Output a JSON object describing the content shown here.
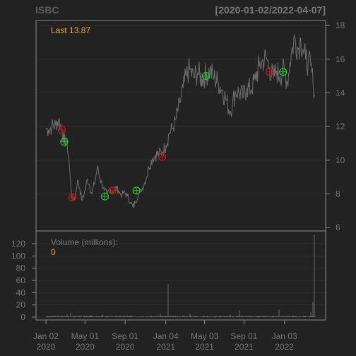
{
  "header": {
    "symbol": "ISBC",
    "date_range": "[2020-01-02/2022-04-07]"
  },
  "colors": {
    "background": "#222222",
    "frame": "#8c8c8c",
    "grid": "#2e2e2e",
    "price_line": "#6a6a6a",
    "text_muted": "#777777",
    "accent_orange": "#f5a623",
    "buy_marker": "#22c02a",
    "sell_marker": "#c0161a"
  },
  "chart_data": [
    {
      "type": "line",
      "title": "ISBC",
      "last_label": "Last 13.87",
      "ylim": [
        5.8,
        18.3
      ],
      "yticks": [
        6,
        8,
        10,
        12,
        14,
        16,
        18
      ],
      "x_range": [
        "2020-01-02",
        "2022-04-07"
      ],
      "grid": true,
      "series": [
        {
          "points": [
            [
              "2020-01-02",
              11.9
            ],
            [
              "2020-01-10",
              11.8
            ],
            [
              "2020-01-20",
              12.0
            ],
            [
              "2020-02-01",
              12.1
            ],
            [
              "2020-02-10",
              12.4
            ],
            [
              "2020-02-20",
              11.9
            ],
            [
              "2020-02-27",
              11.1
            ],
            [
              "2020-03-05",
              11.2
            ],
            [
              "2020-03-12",
              10.2
            ],
            [
              "2020-03-18",
              8.6
            ],
            [
              "2020-03-23",
              7.6
            ],
            [
              "2020-03-31",
              7.8
            ],
            [
              "2020-04-08",
              8.8
            ],
            [
              "2020-04-15",
              8.3
            ],
            [
              "2020-04-22",
              7.6
            ],
            [
              "2020-05-01",
              8.2
            ],
            [
              "2020-05-08",
              8.9
            ],
            [
              "2020-05-15",
              8.5
            ],
            [
              "2020-05-22",
              8.0
            ],
            [
              "2020-06-01",
              8.8
            ],
            [
              "2020-06-08",
              9.6
            ],
            [
              "2020-06-15",
              9.0
            ],
            [
              "2020-06-22",
              8.6
            ],
            [
              "2020-06-30",
              8.2
            ],
            [
              "2020-07-08",
              8.0
            ],
            [
              "2020-07-16",
              8.3
            ],
            [
              "2020-07-24",
              8.1
            ],
            [
              "2020-08-03",
              8.4
            ],
            [
              "2020-08-12",
              8.2
            ],
            [
              "2020-08-20",
              7.9
            ],
            [
              "2020-08-28",
              8.1
            ],
            [
              "2020-09-08",
              7.9
            ],
            [
              "2020-09-18",
              7.5
            ],
            [
              "2020-09-25",
              7.2
            ],
            [
              "2020-10-02",
              7.5
            ],
            [
              "2020-10-12",
              8.0
            ],
            [
              "2020-10-20",
              8.2
            ],
            [
              "2020-10-30",
              8.6
            ],
            [
              "2020-11-06",
              9.0
            ],
            [
              "2020-11-13",
              9.6
            ],
            [
              "2020-11-24",
              10.1
            ],
            [
              "2020-12-03",
              10.3
            ],
            [
              "2020-12-14",
              10.4
            ],
            [
              "2020-12-24",
              10.5
            ],
            [
              "2021-01-05",
              10.9
            ],
            [
              "2021-01-14",
              11.6
            ],
            [
              "2021-01-25",
              11.9
            ],
            [
              "2021-02-05",
              12.5
            ],
            [
              "2021-02-16",
              13.4
            ],
            [
              "2021-02-26",
              14.3
            ],
            [
              "2021-03-08",
              15.0
            ],
            [
              "2021-03-18",
              15.4
            ],
            [
              "2021-03-30",
              14.9
            ],
            [
              "2021-04-12",
              15.2
            ],
            [
              "2021-04-26",
              14.8
            ],
            [
              "2021-05-07",
              15.1
            ],
            [
              "2021-05-20",
              15.3
            ],
            [
              "2021-06-01",
              14.9
            ],
            [
              "2021-06-14",
              14.6
            ],
            [
              "2021-06-25",
              14.2
            ],
            [
              "2021-07-08",
              13.6
            ],
            [
              "2021-07-20",
              12.9
            ],
            [
              "2021-07-28",
              13.4
            ],
            [
              "2021-08-06",
              14.1
            ],
            [
              "2021-08-18",
              14.0
            ],
            [
              "2021-08-30",
              13.8
            ],
            [
              "2021-09-10",
              14.3
            ],
            [
              "2021-09-23",
              14.2
            ],
            [
              "2021-10-05",
              14.8
            ],
            [
              "2021-10-18",
              15.6
            ],
            [
              "2021-10-29",
              15.9
            ],
            [
              "2021-11-08",
              16.1
            ],
            [
              "2021-11-18",
              15.5
            ],
            [
              "2021-11-30",
              14.9
            ],
            [
              "2021-12-10",
              15.3
            ],
            [
              "2021-12-20",
              15.0
            ],
            [
              "2022-01-03",
              15.4
            ],
            [
              "2022-01-12",
              14.6
            ],
            [
              "2022-01-20",
              15.8
            ],
            [
              "2022-01-28",
              16.7
            ],
            [
              "2022-02-04",
              17.3
            ],
            [
              "2022-02-14",
              16.6
            ],
            [
              "2022-02-22",
              17.2
            ],
            [
              "2022-03-01",
              16.6
            ],
            [
              "2022-03-09",
              16.0
            ],
            [
              "2022-03-17",
              15.8
            ],
            [
              "2022-03-25",
              15.6
            ],
            [
              "2022-04-01",
              14.6
            ],
            [
              "2022-04-07",
              13.87
            ]
          ]
        }
      ],
      "markers": [
        {
          "date": "2020-02-20",
          "value": 11.8,
          "type": "sell"
        },
        {
          "date": "2020-02-27",
          "value": 11.1,
          "type": "buy"
        },
        {
          "date": "2020-03-23",
          "value": 7.8,
          "type": "sell"
        },
        {
          "date": "2020-07-01",
          "value": 7.85,
          "type": "buy"
        },
        {
          "date": "2020-07-24",
          "value": 8.2,
          "type": "sell"
        },
        {
          "date": "2020-10-06",
          "value": 8.2,
          "type": "buy"
        },
        {
          "date": "2020-12-24",
          "value": 10.2,
          "type": "sell"
        },
        {
          "date": "2021-05-07",
          "value": 15.0,
          "type": "buy"
        },
        {
          "date": "2021-11-18",
          "value": 15.25,
          "type": "sell"
        },
        {
          "date": "2021-12-30",
          "value": 15.25,
          "type": "buy"
        }
      ]
    },
    {
      "type": "bar",
      "title": "Volume (millions):",
      "last_label": "0",
      "ylim": [
        0,
        128
      ],
      "yticks": [
        0,
        20,
        40,
        60,
        80,
        100,
        120
      ],
      "grid": true,
      "x_ticks": [
        {
          "date": "2020-01-02",
          "line1": "Jan 02",
          "line2": "2020"
        },
        {
          "date": "2020-05-01",
          "line1": "May 01",
          "line2": "2020"
        },
        {
          "date": "2020-09-01",
          "line1": "Sep 01",
          "line2": "2020"
        },
        {
          "date": "2021-01-04",
          "line1": "Jan 04",
          "line2": "2021"
        },
        {
          "date": "2021-05-03",
          "line1": "May 03",
          "line2": "2021"
        },
        {
          "date": "2021-09-01",
          "line1": "Sep 01",
          "line2": "2021"
        },
        {
          "date": "2022-01-03",
          "line1": "Jan 03",
          "line2": "2022"
        }
      ],
      "baseline": 1.5,
      "spikes": [
        {
          "date": "2020-03-06",
          "value": 5
        },
        {
          "date": "2020-03-17",
          "value": 7
        },
        {
          "date": "2020-05-20",
          "value": 4
        },
        {
          "date": "2020-06-24",
          "value": 4
        },
        {
          "date": "2020-12-18",
          "value": 6
        },
        {
          "date": "2021-01-12",
          "value": 54
        },
        {
          "date": "2021-03-19",
          "value": 6
        },
        {
          "date": "2021-07-20",
          "value": 4
        },
        {
          "date": "2021-08-18",
          "value": 11
        },
        {
          "date": "2021-12-17",
          "value": 12
        },
        {
          "date": "2022-03-25",
          "value": 8
        },
        {
          "date": "2022-04-01",
          "value": 25
        },
        {
          "date": "2022-04-05",
          "value": 135
        }
      ]
    }
  ]
}
